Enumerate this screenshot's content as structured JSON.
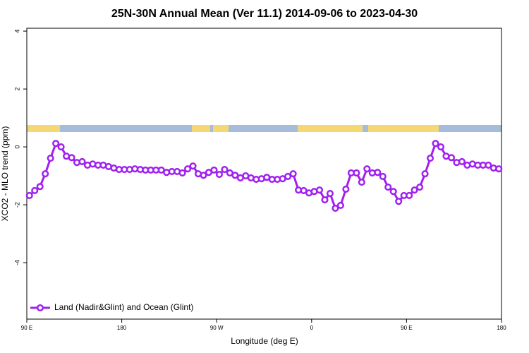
{
  "chart_data": {
    "type": "line",
    "title": "25N-30N Annual Mean (Ver 11.1)   2014-09-06 to 2023-04-30",
    "x_label": "Longitude (deg E)",
    "y_label": "XCO2 - MLO trend (ppm)",
    "x": [
      92.5,
      97.5,
      102.5,
      107.5,
      112.5,
      117.5,
      122.5,
      127.5,
      132.5,
      137.5,
      142.5,
      147.5,
      152.5,
      157.5,
      162.5,
      167.5,
      172.5,
      177.5,
      182.5,
      187.5,
      192.5,
      197.5,
      202.5,
      207.5,
      212.5,
      217.5,
      222.5,
      227.5,
      232.5,
      237.5,
      242.5,
      247.5,
      252.5,
      257.5,
      262.5,
      267.5,
      272.5,
      277.5,
      282.5,
      287.5,
      292.5,
      297.5,
      302.5,
      307.5,
      312.5,
      317.5,
      322.5,
      327.5,
      332.5,
      337.5,
      342.5,
      347.5,
      352.5,
      357.5,
      362.5,
      367.5,
      372.5,
      377.5,
      382.5,
      387.5,
      392.5,
      397.5,
      402.5,
      407.5,
      412.5,
      417.5,
      422.5,
      427.5,
      432.5,
      437.5,
      442.5,
      447.5,
      452.5,
      457.5,
      462.5,
      467.5,
      472.5,
      477.5,
      482.5,
      487.5,
      492.5,
      497.5,
      502.5,
      507.5,
      512.5,
      517.5,
      522.5,
      527.5,
      532.5,
      537.5
    ],
    "series": [
      {
        "name": "Land (Nadir&Glint) and Ocean (Glint)",
        "color": "#a020f0",
        "values": [
          -1.68,
          -1.51,
          -1.37,
          -0.93,
          -0.39,
          0.12,
          0.0,
          -0.32,
          -0.37,
          -0.54,
          -0.51,
          -0.63,
          -0.59,
          -0.63,
          -0.63,
          -0.68,
          -0.73,
          -0.78,
          -0.78,
          -0.78,
          -0.76,
          -0.78,
          -0.8,
          -0.8,
          -0.8,
          -0.8,
          -0.88,
          -0.85,
          -0.85,
          -0.9,
          -0.76,
          -0.66,
          -0.93,
          -0.98,
          -0.88,
          -0.8,
          -0.95,
          -0.78,
          -0.9,
          -0.98,
          -1.07,
          -1.0,
          -1.07,
          -1.12,
          -1.1,
          -1.05,
          -1.12,
          -1.12,
          -1.1,
          -1.02,
          -0.93,
          -1.49,
          -1.51,
          -1.59,
          -1.54,
          -1.49,
          -1.83,
          -1.61,
          -2.12,
          -2.02,
          -1.46,
          -0.9,
          -0.9,
          -1.22,
          -0.76,
          -0.9,
          -0.88,
          -1.02,
          -1.39,
          -1.54,
          -1.88,
          -1.68,
          -1.68,
          -1.49,
          -1.39,
          -0.93,
          -0.39,
          0.12,
          0.0,
          -0.32,
          -0.37,
          -0.54,
          -0.51,
          -0.63,
          -0.59,
          -0.63,
          -0.63,
          -0.63,
          -0.73,
          -0.76
        ]
      }
    ],
    "xlim": [
      90,
      540
    ],
    "xticks": [
      {
        "value": 90,
        "label": "90 E"
      },
      180,
      {
        "value": 270,
        "label": "90 W"
      },
      {
        "value": 360,
        "label": "0"
      },
      {
        "value": 450,
        "label": "90 E"
      },
      {
        "value": 540,
        "label": "180"
      }
    ],
    "ylim": [
      -5.95,
      4.1
    ],
    "yticks": [
      -4,
      -2,
      0,
      2,
      4
    ],
    "legend": "bottom-left"
  }
}
